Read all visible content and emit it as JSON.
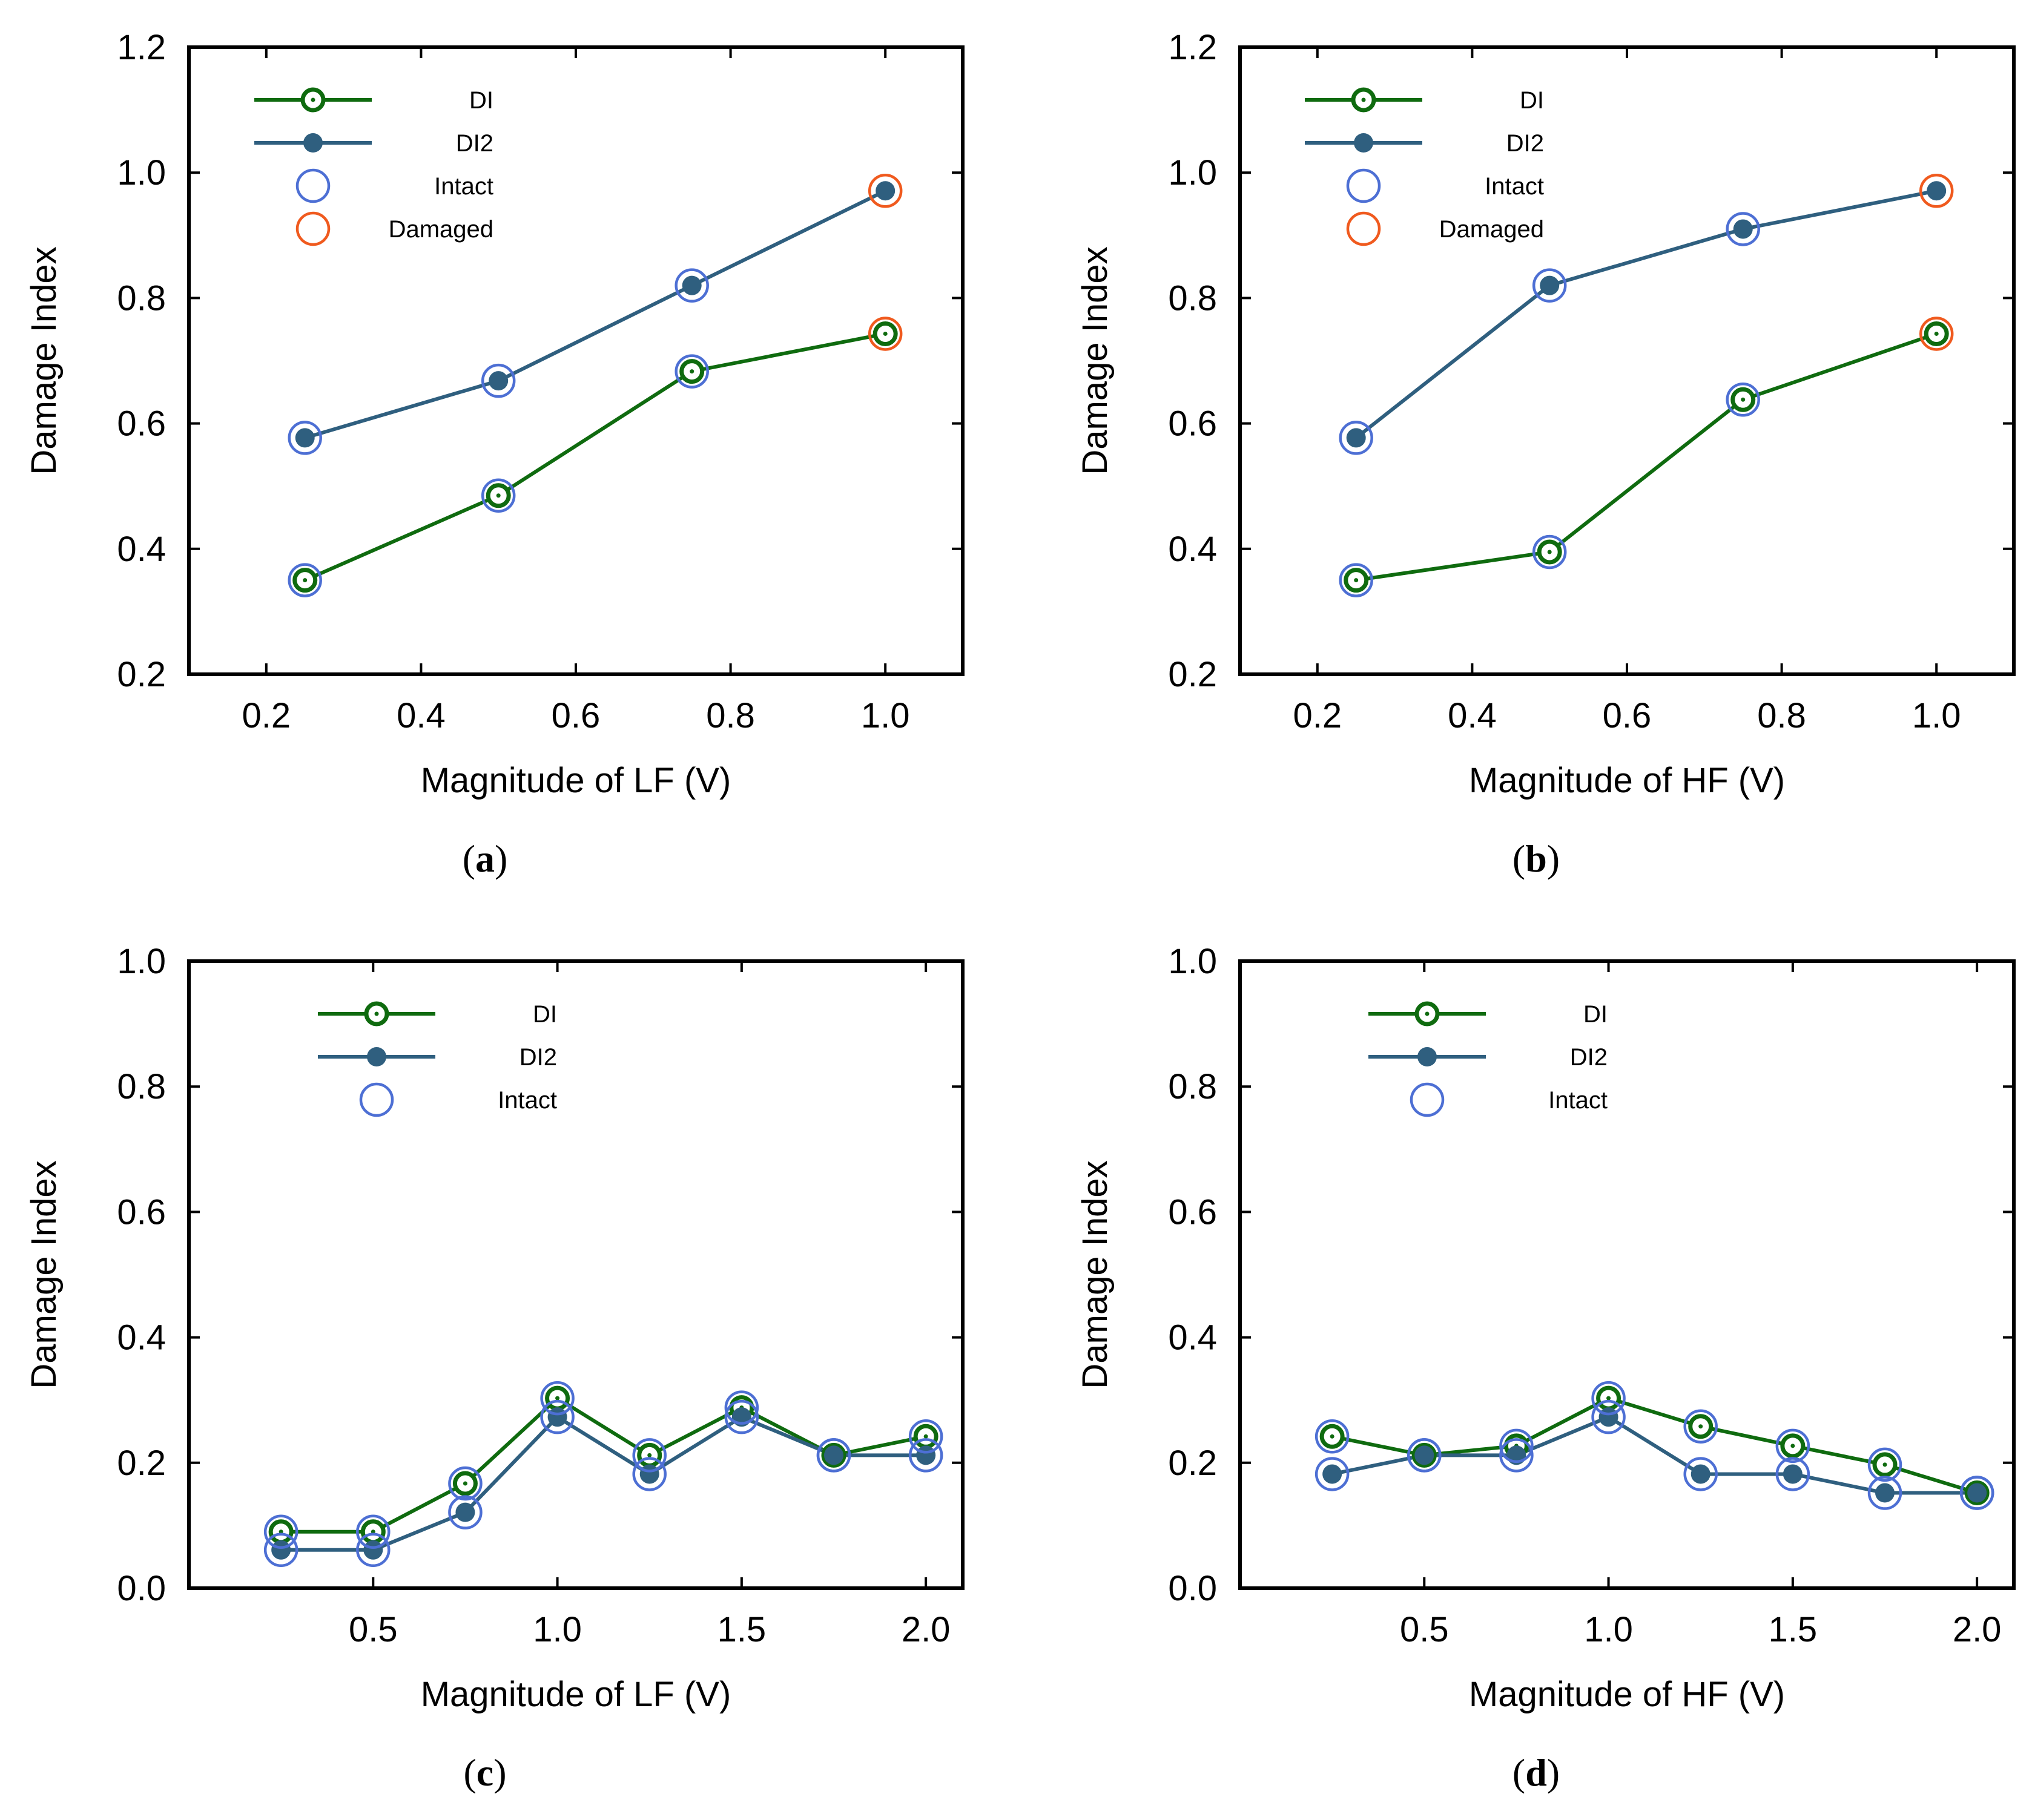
{
  "colors": {
    "di": "#0f6b0f",
    "di2": "#2f5f7f",
    "intact": "#4d6fd4",
    "damaged": "#f05a1e"
  },
  "chart_data": [
    {
      "type": "line",
      "caption": "a",
      "xlabel": "Magnitude of LF (V)",
      "ylabel": "Damage Index",
      "xlim": [
        0.1,
        1.1
      ],
      "ylim": [
        0.2,
        1.2
      ],
      "xticks": [
        0.2,
        0.4,
        0.6,
        0.8,
        1.0
      ],
      "xtick_labels": [
        "0.2",
        "0.4",
        "0.6",
        "0.8",
        "1.0"
      ],
      "yticks": [
        0.2,
        0.4,
        0.6,
        0.8,
        1.0,
        1.2
      ],
      "ytick_labels": [
        "0.2",
        "0.4",
        "0.6",
        "0.8",
        "1.0",
        "1.2"
      ],
      "x": [
        0.25,
        0.5,
        0.75,
        1.0
      ],
      "series": [
        {
          "name": "DI",
          "values": [
            0.35,
            0.485,
            0.683,
            0.743
          ]
        },
        {
          "name": "DI2",
          "values": [
            0.577,
            0.668,
            0.82,
            0.971
          ]
        }
      ],
      "markers": [
        "intact",
        "intact",
        "intact",
        "damaged"
      ],
      "legend": [
        "DI",
        "DI2",
        "Intact",
        "Damaged"
      ]
    },
    {
      "type": "line",
      "caption": "b",
      "xlabel": "Magnitude of HF (V)",
      "ylabel": "Damage Index",
      "xlim": [
        0.1,
        1.1
      ],
      "ylim": [
        0.2,
        1.2
      ],
      "xticks": [
        0.2,
        0.4,
        0.6,
        0.8,
        1.0
      ],
      "xtick_labels": [
        "0.2",
        "0.4",
        "0.6",
        "0.8",
        "1.0"
      ],
      "yticks": [
        0.2,
        0.4,
        0.6,
        0.8,
        1.0,
        1.2
      ],
      "ytick_labels": [
        "0.2",
        "0.4",
        "0.6",
        "0.8",
        "1.0",
        "1.2"
      ],
      "x": [
        0.25,
        0.5,
        0.75,
        1.0
      ],
      "series": [
        {
          "name": "DI",
          "values": [
            0.35,
            0.395,
            0.638,
            0.743
          ]
        },
        {
          "name": "DI2",
          "values": [
            0.577,
            0.82,
            0.91,
            0.971
          ]
        }
      ],
      "markers": [
        "intact",
        "intact",
        "intact",
        "damaged"
      ],
      "legend": [
        "DI",
        "DI2",
        "Intact",
        "Damaged"
      ]
    },
    {
      "type": "line",
      "caption": "c",
      "xlabel": "Magnitude of LF (V)",
      "ylabel": "Damage Index",
      "xlim": [
        0.0,
        2.1
      ],
      "ylim": [
        0.0,
        1.0
      ],
      "xticks": [
        0.5,
        1.0,
        1.5,
        2.0
      ],
      "xtick_labels": [
        "0.5",
        "1.0",
        "1.5",
        "2.0"
      ],
      "yticks": [
        0.0,
        0.2,
        0.4,
        0.6,
        0.8,
        1.0
      ],
      "ytick_labels": [
        "0.0",
        "0.2",
        "0.4",
        "0.6",
        "0.8",
        "1.0"
      ],
      "x": [
        0.25,
        0.5,
        0.75,
        1.0,
        1.25,
        1.5,
        1.75,
        2.0
      ],
      "series": [
        {
          "name": "DI",
          "values": [
            0.09,
            0.09,
            0.167,
            0.303,
            0.212,
            0.288,
            0.212,
            0.242
          ]
        },
        {
          "name": "DI2",
          "values": [
            0.061,
            0.061,
            0.121,
            0.273,
            0.182,
            0.273,
            0.212,
            0.212
          ]
        }
      ],
      "markers": [
        "intact",
        "intact",
        "intact",
        "intact",
        "intact",
        "intact",
        "intact",
        "intact"
      ],
      "legend": [
        "DI",
        "DI2",
        "Intact"
      ]
    },
    {
      "type": "line",
      "caption": "d",
      "xlabel": "Magnitude of HF (V)",
      "ylabel": "Damage Index",
      "xlim": [
        0.0,
        2.1
      ],
      "ylim": [
        0.0,
        1.0
      ],
      "xticks": [
        0.5,
        1.0,
        1.5,
        2.0
      ],
      "xtick_labels": [
        "0.5",
        "1.0",
        "1.5",
        "2.0"
      ],
      "yticks": [
        0.0,
        0.2,
        0.4,
        0.6,
        0.8,
        1.0
      ],
      "ytick_labels": [
        "0.0",
        "0.2",
        "0.4",
        "0.6",
        "0.8",
        "1.0"
      ],
      "x": [
        0.25,
        0.5,
        0.75,
        1.0,
        1.25,
        1.5,
        1.75,
        2.0
      ],
      "series": [
        {
          "name": "DI",
          "values": [
            0.242,
            0.212,
            0.227,
            0.303,
            0.258,
            0.227,
            0.197,
            0.152
          ]
        },
        {
          "name": "DI2",
          "values": [
            0.182,
            0.212,
            0.212,
            0.273,
            0.182,
            0.182,
            0.152,
            0.152
          ]
        }
      ],
      "markers": [
        "intact",
        "intact",
        "intact",
        "intact",
        "intact",
        "intact",
        "intact",
        "intact"
      ],
      "legend": [
        "DI",
        "DI2",
        "Intact"
      ]
    }
  ]
}
